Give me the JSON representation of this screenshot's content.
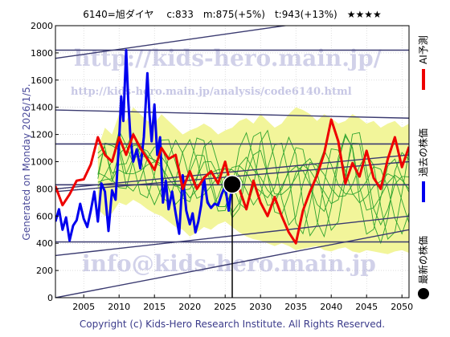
{
  "header": {
    "title": "6140=旭ダイヤ　 c:833　m:875(+5%)　t:943(+13%)　★★★★"
  },
  "side_note": "Generated on Monday 2026/1/5.",
  "footer": {
    "copyright": "Copyright (c) Kids-Hero Research Institute. All Rights Reserved."
  },
  "watermarks": {
    "url": "http://kids-hero.main.jp/",
    "analysis_url": "http://kids-hero.main.jp/analysis/code6140.html",
    "email": "info@kids-hero.main.jp"
  },
  "legend": [
    {
      "label": "AI予測",
      "color": "#ee0000",
      "shape": "line"
    },
    {
      "label": "過去の株価",
      "color": "#0000ee",
      "shape": "line"
    },
    {
      "label": "最新の株価",
      "color": "#000000",
      "shape": "dot"
    }
  ],
  "colors": {
    "ai_forecast": "#ee0000",
    "past_price": "#0000ee",
    "latest_dot": "#000000",
    "trend_lines": "#3a3a70",
    "band_fill": "#f2f59a",
    "band_lines": "#2fa32f"
  },
  "chart_data": {
    "type": "line",
    "title": "",
    "xlabel": "",
    "ylabel": "",
    "xlim": [
      2001,
      2051
    ],
    "ylim": [
      0,
      2000
    ],
    "x_ticks": [
      2005,
      2010,
      2015,
      2020,
      2025,
      2030,
      2035,
      2040,
      2045,
      2050
    ],
    "y_ticks": [
      0,
      200,
      400,
      600,
      800,
      1000,
      1200,
      1400,
      1600,
      1800,
      2000
    ],
    "grid": true,
    "latest": {
      "x": 2026.0,
      "y": 833
    },
    "horizontal_lines": [
      1820,
      1130,
      830,
      410
    ],
    "trend_lines": [
      {
        "x": [
          2001,
          2051
        ],
        "y": [
          1760,
          2130
        ]
      },
      {
        "x": [
          2001,
          2051
        ],
        "y": [
          800,
          1050
        ]
      },
      {
        "x": [
          2001,
          2051
        ],
        "y": [
          780,
          1000
        ]
      },
      {
        "x": [
          2001,
          2051
        ],
        "y": [
          310,
          600
        ]
      },
      {
        "x": [
          2001,
          2051
        ],
        "y": [
          0,
          500
        ]
      },
      {
        "x": [
          2001,
          2051
        ],
        "y": [
          1380,
          1320
        ]
      }
    ],
    "series": [
      {
        "name": "過去の株価",
        "x": [
          2001.0,
          2001.5,
          2002.0,
          2002.5,
          2003.0,
          2003.5,
          2004.0,
          2004.5,
          2005.0,
          2005.5,
          2006.0,
          2006.5,
          2007.0,
          2007.5,
          2008.0,
          2008.5,
          2009.0,
          2009.5,
          2010.0,
          2010.3,
          2010.6,
          2011.0,
          2011.3,
          2011.6,
          2012.0,
          2012.5,
          2013.0,
          2013.5,
          2014.0,
          2014.3,
          2014.6,
          2015.0,
          2015.4,
          2015.8,
          2016.2,
          2016.6,
          2017.0,
          2017.5,
          2018.0,
          2018.5,
          2019.0,
          2019.5,
          2020.0,
          2020.4,
          2020.8,
          2021.2,
          2021.6,
          2022.0,
          2022.5,
          2023.0,
          2023.5,
          2024.0,
          2024.5,
          2025.0,
          2025.5,
          2026.0
        ],
        "y": [
          560,
          650,
          500,
          590,
          420,
          530,
          570,
          690,
          580,
          520,
          640,
          780,
          560,
          840,
          780,
          490,
          790,
          720,
          1150,
          1480,
          1300,
          1820,
          1450,
          1180,
          1000,
          1090,
          950,
          1180,
          1650,
          1350,
          1150,
          1420,
          1050,
          1180,
          700,
          860,
          650,
          780,
          620,
          470,
          900,
          640,
          540,
          620,
          480,
          560,
          680,
          880,
          700,
          660,
          690,
          680,
          760,
          820,
          640,
          833
        ]
      },
      {
        "name": "AI予測",
        "x": [
          2001,
          2002,
          2003,
          2004,
          2005,
          2006,
          2007,
          2008,
          2009,
          2010,
          2011,
          2012,
          2013,
          2014,
          2015,
          2016,
          2017,
          2018,
          2019,
          2020,
          2021,
          2022,
          2023,
          2024,
          2025,
          2026,
          2027,
          2028,
          2029,
          2030,
          2031,
          2032,
          2033,
          2034,
          2035,
          2036,
          2037,
          2038,
          2039,
          2040,
          2041,
          2042,
          2043,
          2044,
          2045,
          2046,
          2047,
          2048,
          2049,
          2050,
          2051
        ],
        "y": [
          820,
          680,
          760,
          860,
          870,
          980,
          1180,
          1050,
          1000,
          1180,
          1050,
          1200,
          1100,
          1020,
          940,
          1100,
          1020,
          1050,
          800,
          930,
          800,
          880,
          930,
          840,
          1000,
          780,
          800,
          650,
          860,
          700,
          600,
          740,
          600,
          480,
          400,
          640,
          780,
          900,
          1060,
          1310,
          1150,
          840,
          990,
          890,
          1080,
          880,
          800,
          1020,
          1180,
          960,
          1110
        ]
      }
    ],
    "band": {
      "x": [
        2007,
        2008,
        2009,
        2010,
        2011,
        2012,
        2013,
        2014,
        2015,
        2016,
        2017,
        2018,
        2019,
        2020,
        2021,
        2022,
        2023,
        2024,
        2025,
        2026,
        2027,
        2028,
        2029,
        2030,
        2031,
        2032,
        2033,
        2034,
        2035,
        2036,
        2037,
        2038,
        2039,
        2040,
        2041,
        2042,
        2043,
        2044,
        2045,
        2046,
        2047,
        2048,
        2049,
        2050,
        2051
      ],
      "upper": [
        1100,
        1250,
        1200,
        1350,
        1300,
        1400,
        1350,
        1300,
        1280,
        1350,
        1300,
        1250,
        1200,
        1230,
        1250,
        1280,
        1250,
        1200,
        1230,
        1250,
        1300,
        1320,
        1280,
        1350,
        1300,
        1250,
        1280,
        1350,
        1400,
        1380,
        1350,
        1300,
        1350,
        1320,
        1280,
        1300,
        1350,
        1320,
        1280,
        1300,
        1250,
        1280,
        1300,
        1250,
        1280
      ],
      "lower": [
        650,
        600,
        620,
        700,
        680,
        720,
        690,
        650,
        620,
        600,
        560,
        520,
        500,
        450,
        480,
        520,
        500,
        540,
        560,
        520,
        480,
        450,
        430,
        420,
        400,
        380,
        400,
        380,
        350,
        360,
        370,
        380,
        350,
        340,
        360,
        370,
        340,
        330,
        350,
        340,
        330,
        320,
        340,
        350,
        330
      ],
      "members": 7
    }
  }
}
